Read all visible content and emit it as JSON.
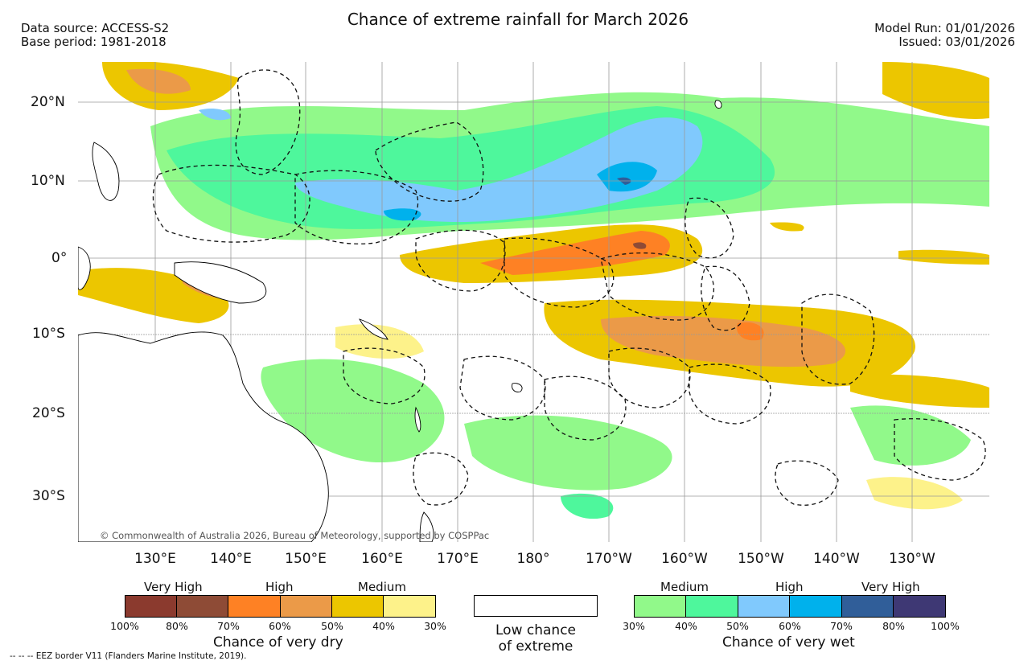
{
  "header": {
    "title": "Chance of extreme rainfall for March 2026",
    "data_source": "Data source: ACCESS-S2",
    "base_period": "Base period: 1981-2018",
    "model_run": "Model Run: 01/01/2026",
    "issued": "Issued: 03/01/2026"
  },
  "map": {
    "lat_labels": [
      "20°N",
      "10°N",
      "0°",
      "10°S",
      "20°S",
      "30°S"
    ],
    "lon_labels": [
      "130°E",
      "140°E",
      "150°E",
      "160°E",
      "170°E",
      "180°",
      "170°W",
      "160°W",
      "150°W",
      "140°W",
      "130°W"
    ],
    "copyright": "© Commonwealth of Australia 2026, Bureau of Meteorology, supported by COSPPac"
  },
  "legend": {
    "dry": {
      "categories": [
        "Very High",
        "High",
        "Medium"
      ],
      "colors": [
        "#8b3a2e",
        "#8e4b36",
        "#fe8124",
        "#eb9a48",
        "#ecc600",
        "#fdf28a"
      ],
      "ticks": [
        "100%",
        "80%",
        "70%",
        "60%",
        "50%",
        "40%",
        "30%"
      ],
      "title": "Chance of very dry"
    },
    "low": {
      "line1": "Low chance",
      "line2": "of extreme"
    },
    "wet": {
      "categories": [
        "Medium",
        "High",
        "Very High"
      ],
      "colors": [
        "#91f98a",
        "#4ef79c",
        "#80c9fd",
        "#00b1ec",
        "#305e99",
        "#3e3874"
      ],
      "ticks": [
        "30%",
        "40%",
        "50%",
        "60%",
        "70%",
        "80%",
        "100%"
      ],
      "title": "Chance of very wet"
    },
    "eez_note": "--  --  -- EEZ border V11 (Flanders Marine Institute, 2019)."
  }
}
